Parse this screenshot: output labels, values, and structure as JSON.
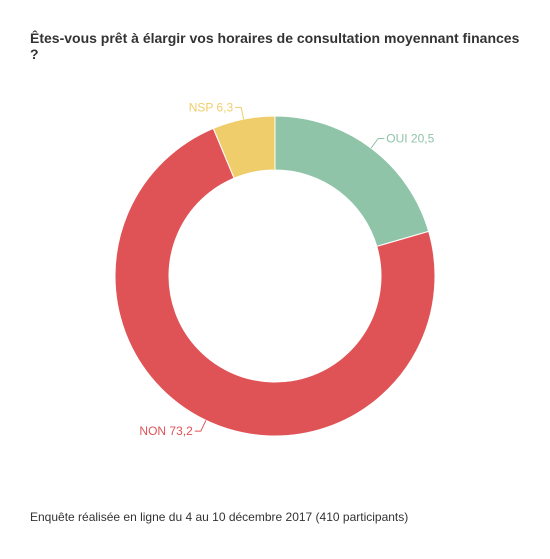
{
  "chart_data": {
    "type": "pie",
    "title": "Êtes-vous prêt à élargir vos horaires de consultation moyennant finances ?",
    "footer": "Enquête réalisée en ligne du 4 au 10 décembre 2017 (410 participants)",
    "donut": true,
    "slices": [
      {
        "label": "OUI",
        "value": 20.5,
        "display": "OUI 20,5",
        "color": "#8fc4a8"
      },
      {
        "label": "NON",
        "value": 73.2,
        "display": "NON 73,2",
        "color": "#df5357"
      },
      {
        "label": "NSP",
        "value": 6.3,
        "display": "NSP 6,3",
        "color": "#f0cd6b"
      }
    ]
  }
}
